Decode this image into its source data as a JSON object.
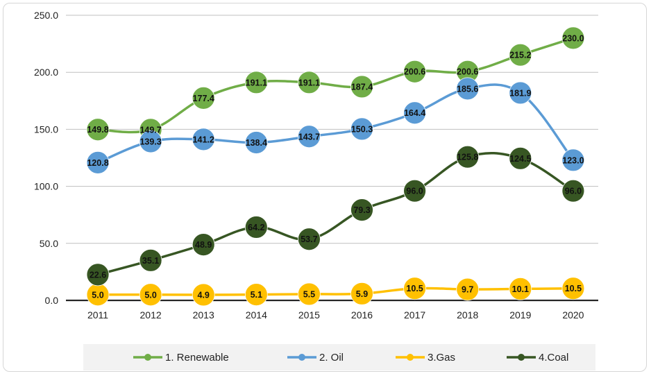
{
  "chart_data": {
    "type": "line",
    "title": "",
    "xlabel": "",
    "ylabel": "",
    "ylim": [
      0,
      250
    ],
    "yticks": [
      "0.0",
      "50.0",
      "100.0",
      "150.0",
      "200.0",
      "250.0"
    ],
    "categories": [
      "2011",
      "2012",
      "2013",
      "2014",
      "2015",
      "2016",
      "2017",
      "2018",
      "2019",
      "2020"
    ],
    "grid": "horizontal",
    "legend_position": "bottom",
    "smooth": true,
    "series": [
      {
        "name": "1. Renewable",
        "color": "#70ad47",
        "values": [
          149.8,
          149.7,
          177.4,
          191.1,
          191.1,
          187.4,
          200.6,
          200.6,
          215.2,
          230.0
        ]
      },
      {
        "name": "2. Oil",
        "color": "#5b9bd5",
        "values": [
          120.8,
          139.3,
          141.2,
          138.4,
          143.7,
          150.3,
          164.4,
          185.6,
          181.9,
          123.0
        ]
      },
      {
        "name": "3.Gas",
        "color": "#ffc000",
        "values": [
          5.0,
          5.0,
          4.9,
          5.1,
          5.5,
          5.9,
          10.5,
          9.7,
          10.1,
          10.5
        ]
      },
      {
        "name": "4.Coal",
        "color": "#375623",
        "values": [
          22.6,
          35.1,
          48.9,
          64.2,
          53.7,
          79.3,
          96.0,
          125.8,
          124.5,
          96.0
        ]
      }
    ]
  }
}
